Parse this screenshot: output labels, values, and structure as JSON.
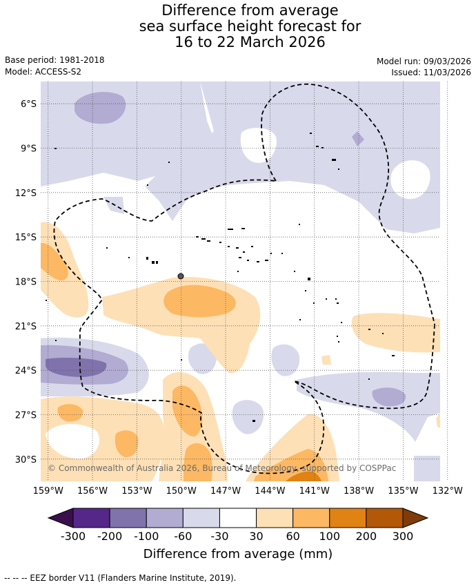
{
  "title": {
    "line1": "Difference from average",
    "line2": "sea surface height forecast for",
    "line3": "16 to 22 March 2026"
  },
  "meta": {
    "base_period": "Base period: 1981-2018",
    "model": "Model: ACCESS-S2",
    "model_run": "Model run: 09/03/2026",
    "issued": "Issued: 11/03/2026"
  },
  "map": {
    "copyright": "© Commonwealth of Australia 2026, Bureau of Meteorology, supported by COSPPac",
    "lon_range": [
      -159.5,
      -132.5
    ],
    "lat_range": [
      -4.5,
      -31.5
    ],
    "lat_labels": [
      {
        "value": -6,
        "label": "6°S"
      },
      {
        "value": -9,
        "label": "9°S"
      },
      {
        "value": -12,
        "label": "12°S"
      },
      {
        "value": -15,
        "label": "15°S"
      },
      {
        "value": -18,
        "label": "18°S"
      },
      {
        "value": -21,
        "label": "21°S"
      },
      {
        "value": -24,
        "label": "24°S"
      },
      {
        "value": -27,
        "label": "27°S"
      },
      {
        "value": -30,
        "label": "30°S"
      }
    ],
    "lon_labels": [
      {
        "value": -159,
        "label": "159°W"
      },
      {
        "value": -156,
        "label": "156°W"
      },
      {
        "value": -153,
        "label": "153°W"
      },
      {
        "value": -150,
        "label": "150°W"
      },
      {
        "value": -147,
        "label": "147°W"
      },
      {
        "value": -144,
        "label": "144°W"
      },
      {
        "value": -141,
        "label": "141°W"
      },
      {
        "value": -138,
        "label": "138°W"
      },
      {
        "value": -135,
        "label": "135°W"
      },
      {
        "value": -132,
        "label": "132°W"
      }
    ]
  },
  "colorbar": {
    "title": "Difference from average (mm)",
    "low_extend_color": "#3b0f4e",
    "high_extend_color": "#7f3b08",
    "bins": [
      {
        "from": -300,
        "to": -200,
        "color": "#542788"
      },
      {
        "from": -200,
        "to": -100,
        "color": "#8073ac"
      },
      {
        "from": -100,
        "to": -60,
        "color": "#b2abd2"
      },
      {
        "from": -60,
        "to": -30,
        "color": "#d8daeb"
      },
      {
        "from": -30,
        "to": 30,
        "color": "#ffffff"
      },
      {
        "from": 30,
        "to": 60,
        "color": "#fee0b6"
      },
      {
        "from": 60,
        "to": 100,
        "color": "#fdb863"
      },
      {
        "from": 100,
        "to": 200,
        "color": "#e08214"
      },
      {
        "from": 200,
        "to": 300,
        "color": "#b35806"
      }
    ],
    "tick_labels": [
      "-300",
      "-200",
      "-100",
      "-60",
      "-30",
      "30",
      "60",
      "100",
      "200",
      "300"
    ]
  },
  "footnote": "--  --  -- EEZ border V11 (Flanders Marine Institute, 2019)."
}
